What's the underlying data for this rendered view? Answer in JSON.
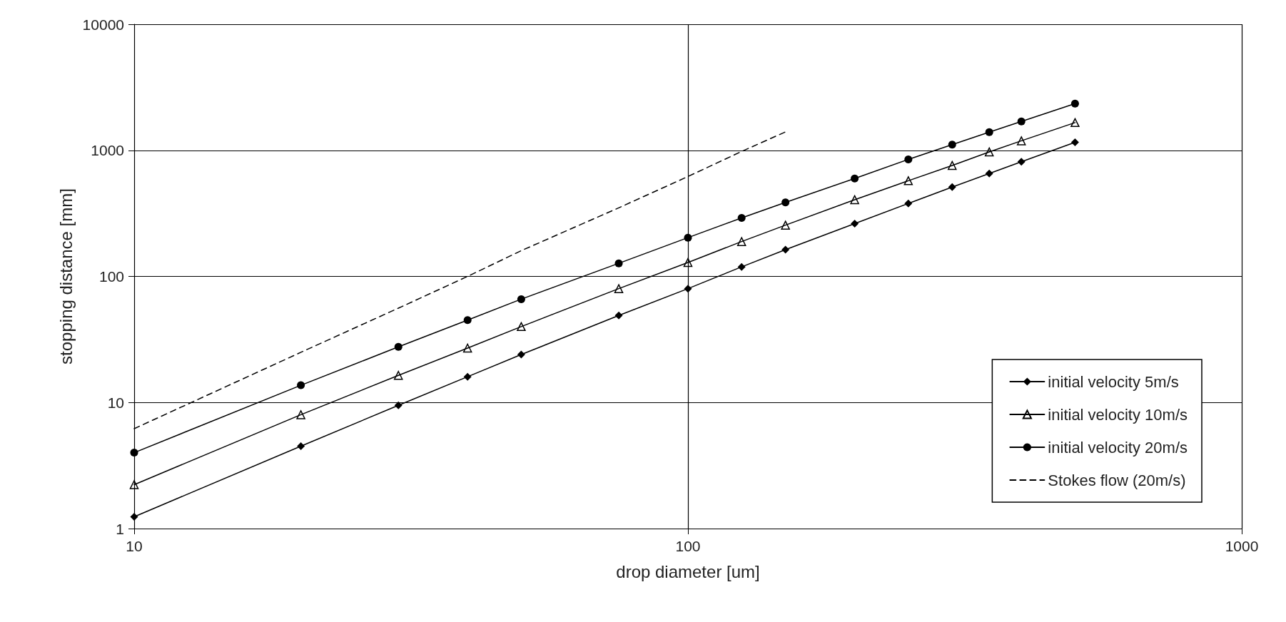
{
  "chart_data": {
    "type": "line",
    "xlabel": "drop diameter [um]",
    "ylabel": "stopping distance [mm]",
    "log": "xy",
    "xlim": [
      10,
      1000
    ],
    "xticks": [
      10,
      100,
      1000
    ],
    "ylim": [
      1,
      10000
    ],
    "yticks": [
      1,
      10,
      100,
      1000,
      10000
    ],
    "grid": true,
    "legend": "bottom right",
    "x": [
      10,
      20,
      30,
      40,
      50,
      75,
      100,
      125,
      150,
      200,
      250,
      300,
      350,
      400,
      500
    ],
    "series": [
      {
        "name": "initial velocity 5m/s",
        "color": "#000000",
        "marker": "diamond",
        "line_style": "solid",
        "values": [
          1.24,
          4.5,
          9.5,
          16,
          24,
          49,
          80,
          119,
          163,
          262,
          379,
          511,
          655,
          812,
          1157
        ]
      },
      {
        "name": "initial velocity 10m/s",
        "color": "#000000",
        "marker": "triangle",
        "line_style": "solid",
        "values": [
          2.23,
          8,
          16.4,
          27,
          40,
          80,
          129,
          189,
          255,
          406,
          574,
          759,
          972,
          1190,
          1660
        ]
      },
      {
        "name": "initial velocity 20m/s",
        "color": "#000000",
        "marker": "circle",
        "line_style": "solid",
        "values": [
          4.0,
          13.7,
          27.6,
          45,
          66,
          127,
          203,
          291,
          386,
          598,
          847,
          1110,
          1395,
          1693,
          2345
        ]
      },
      {
        "name": "Stokes flow (20m/s)",
        "color": "#000000",
        "marker": "none",
        "line_style": "dashed",
        "x": [
          10,
          20,
          30,
          40,
          50,
          75,
          100,
          125,
          150
        ],
        "values": [
          6.2,
          25,
          56,
          100,
          160,
          350,
          620,
          980,
          1400
        ]
      }
    ]
  }
}
